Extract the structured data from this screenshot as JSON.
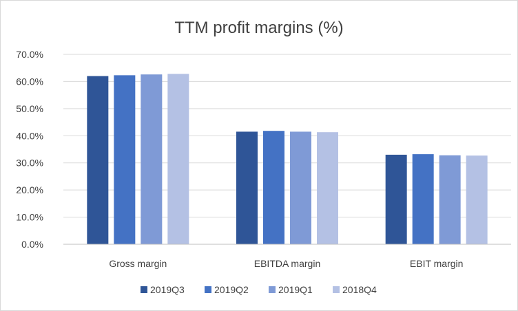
{
  "chart_data": {
    "type": "bar",
    "title": "TTM profit margins (%)",
    "xlabel": "",
    "ylabel": "",
    "ylim": [
      0,
      70
    ],
    "yticks": [
      0,
      10,
      20,
      30,
      40,
      50,
      60,
      70
    ],
    "ytick_labels": [
      "0.0%",
      "10.0%",
      "20.0%",
      "30.0%",
      "40.0%",
      "50.0%",
      "60.0%",
      "70.0%"
    ],
    "categories": [
      "Gross margin",
      "EBITDA margin",
      "EBIT margin"
    ],
    "series": [
      {
        "name": "2019Q3",
        "color": "#2f5597",
        "values": [
          62.0,
          41.5,
          33.0
        ]
      },
      {
        "name": "2019Q2",
        "color": "#4472c4",
        "values": [
          62.3,
          41.8,
          33.2
        ]
      },
      {
        "name": "2019Q1",
        "color": "#7f9ad6",
        "values": [
          62.6,
          41.5,
          32.8
        ]
      },
      {
        "name": "2018Q4",
        "color": "#b4c1e4",
        "values": [
          62.8,
          41.3,
          32.7
        ]
      }
    ],
    "grid": true,
    "legend": "bottom"
  }
}
